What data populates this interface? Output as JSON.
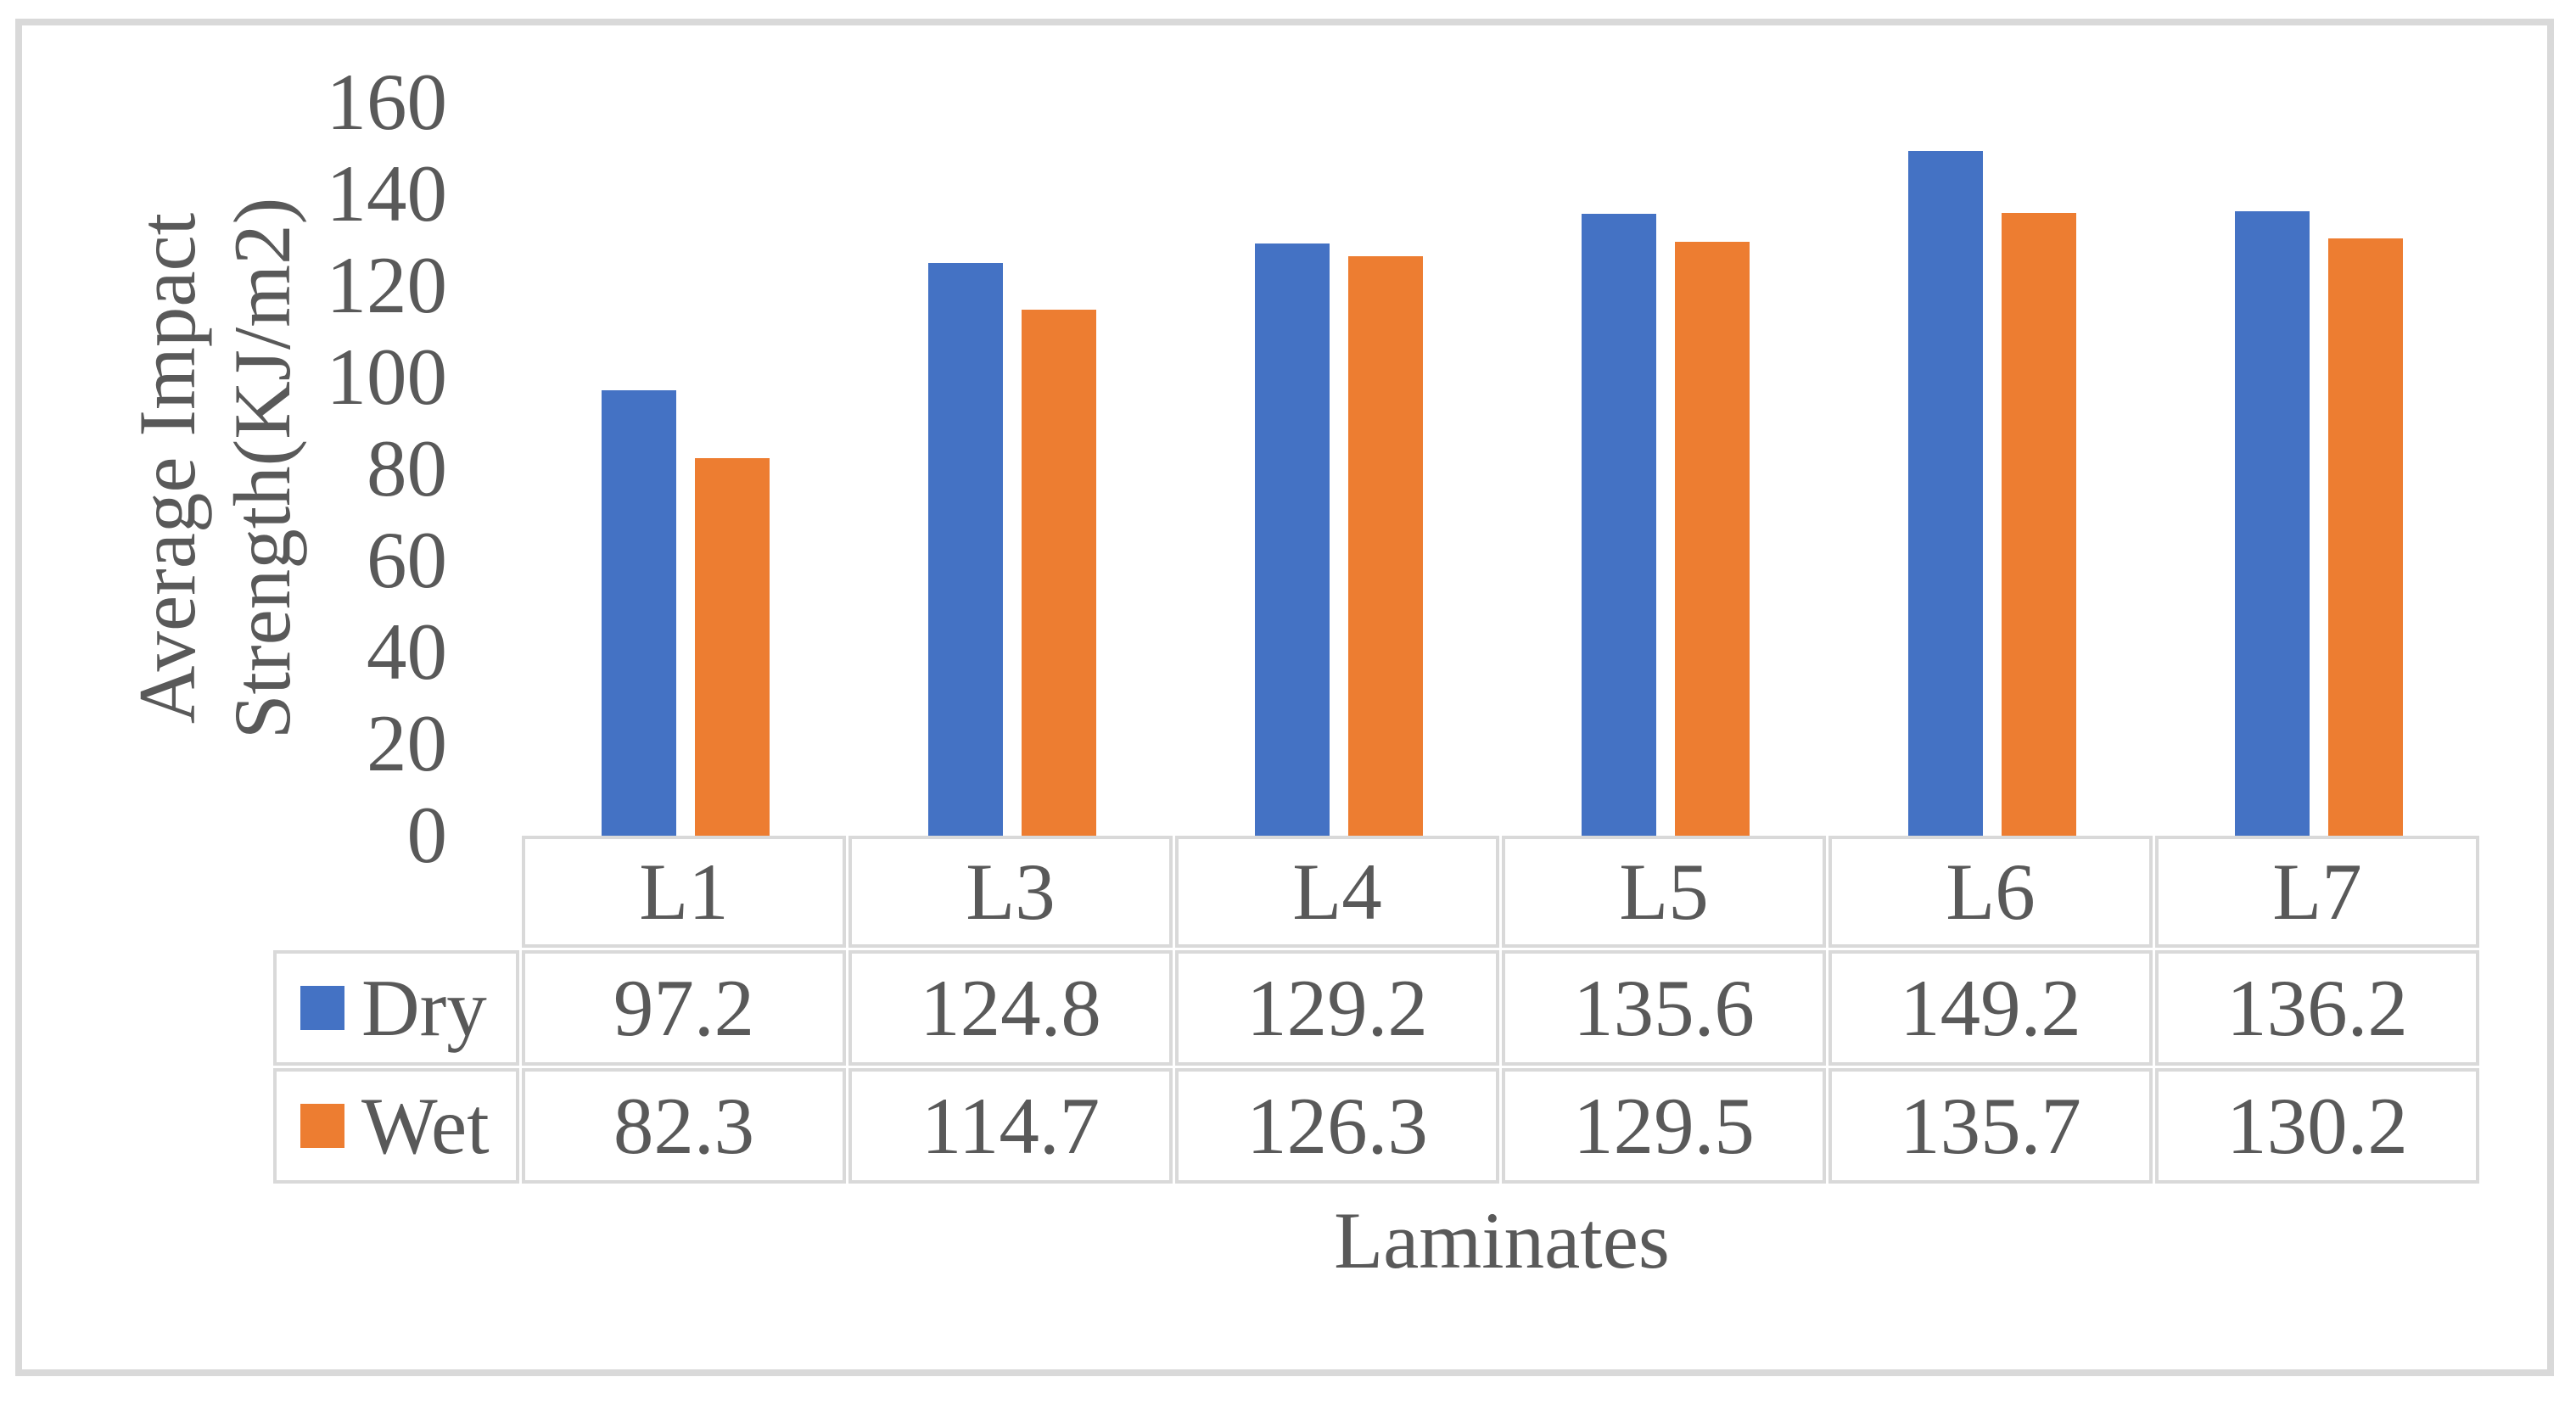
{
  "chart_data": {
    "type": "bar",
    "title": "",
    "categories": [
      "L1",
      "L3",
      "L4",
      "L5",
      "L6",
      "L7"
    ],
    "series": [
      {
        "name": "Dry",
        "color": "#4472C4",
        "values": [
          97.2,
          124.8,
          129.2,
          135.6,
          149.2,
          136.2
        ]
      },
      {
        "name": "Wet",
        "color": "#ED7D31",
        "values": [
          82.3,
          114.7,
          126.3,
          129.5,
          135.7,
          130.2
        ]
      }
    ],
    "xlabel": "Laminates",
    "ylabel_lines": [
      "Average Impact",
      "Strength(KJ/m2)"
    ],
    "ylim": [
      0,
      160
    ],
    "yticks": [
      160,
      140,
      120,
      100,
      80,
      60,
      40,
      20,
      0
    ],
    "grid": false,
    "legend_position": "data-table-row-headers",
    "data_table_shown": true
  },
  "style": {
    "bar_blue": "#4472C4",
    "bar_orange": "#ED7D31",
    "text_color": "#595959",
    "table_border_color": "#D9D9D9",
    "frame_border_color": "#D9D9D9",
    "background": "#FFFFFF"
  }
}
